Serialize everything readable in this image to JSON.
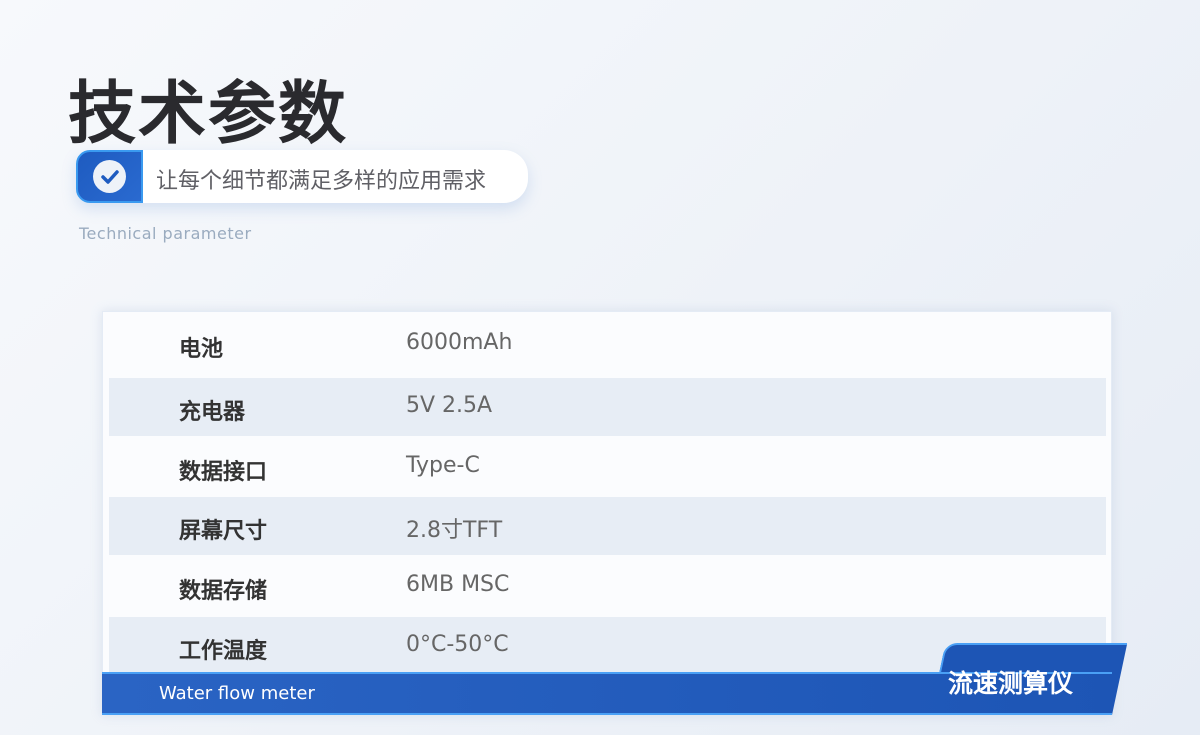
{
  "header": {
    "title": "技术参数",
    "tagline": "让每个细节都满足多样的应用需求",
    "subtitle": "Technical parameter",
    "badge_icon": "check-circle-icon"
  },
  "specs": [
    {
      "label": "电池",
      "value": "6000mAh"
    },
    {
      "label": "充电器",
      "value": "5V 2.5A"
    },
    {
      "label": "数据接口",
      "value": "Type-C"
    },
    {
      "label": "屏幕尺寸",
      "value": "2.8寸TFT"
    },
    {
      "label": "数据存储",
      "value": "6MB MSC"
    },
    {
      "label": "工作温度",
      "value": "0°C-50°C"
    }
  ],
  "footer": {
    "english": "Water flow meter",
    "product": "流速测算仪"
  },
  "colors": {
    "accent": "#1d55b5",
    "accent_border": "#4aa0f5"
  }
}
